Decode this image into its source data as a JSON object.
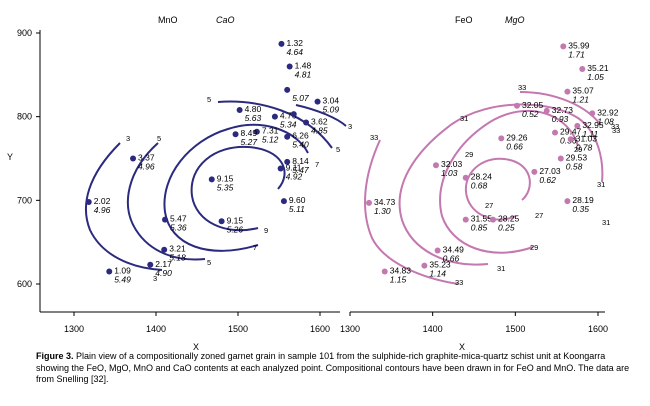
{
  "caption": {
    "label": "Figure 3.",
    "text": " Plain view of a compositionally zoned garnet grain in sample 101 from the sulphide-rich graphite-mica-quartz schist unit at Koongarra showing the FeO, MgO, MnO and CaO contents at each analyzed point. Compositional contours have been drawn in for FeO and MnO.  The data are from Snelling [32]."
  },
  "colors": {
    "left_panel": "#2b2a7e",
    "right_panel": "#c478b0",
    "text": "#000000"
  },
  "chart_data": [
    {
      "type": "scatter",
      "panel": "left",
      "series_labels": [
        "MnO",
        "CaO"
      ],
      "xlabel": "X",
      "ylabel": "Y",
      "xlim": [
        1290,
        1610
      ],
      "ylim": [
        580,
        915
      ],
      "x_ticks": [
        1300,
        1400,
        1500,
        1600
      ],
      "y_ticks": [
        600,
        700,
        800,
        900
      ],
      "contour_labels": [
        "3",
        "5",
        "5",
        "3",
        "7",
        "5",
        "7",
        "9",
        "5",
        "3"
      ],
      "points": [
        {
          "x": 1553,
          "y": 887,
          "mno": "1.32",
          "cao": "4.64"
        },
        {
          "x": 1563,
          "y": 860,
          "mno": "1.48",
          "cao": "4.81"
        },
        {
          "x": 1560,
          "y": 832,
          "mno": "",
          "cao": "5.07"
        },
        {
          "x": 1502,
          "y": 808,
          "mno": "4.80",
          "cao": "5.63"
        },
        {
          "x": 1545,
          "y": 800,
          "mno": "4.76",
          "cao": "5.34"
        },
        {
          "x": 1568,
          "y": 803,
          "mno": "",
          "cao": ""
        },
        {
          "x": 1597,
          "y": 818,
          "mno": "3.04",
          "cao": "5.09"
        },
        {
          "x": 1583,
          "y": 793,
          "mno": "3.62",
          "cao": "4.85"
        },
        {
          "x": 1523,
          "y": 782,
          "mno": "7.31",
          "cao": "5.12"
        },
        {
          "x": 1560,
          "y": 776,
          "mno": "6.26",
          "cao": "5.40"
        },
        {
          "x": 1497,
          "y": 779,
          "mno": "8.49",
          "cao": "5.27"
        },
        {
          "x": 1560,
          "y": 746,
          "mno": "8.14",
          "cao": "5.47"
        },
        {
          "x": 1552,
          "y": 738,
          "mno": "9.11",
          "cao": "4.92"
        },
        {
          "x": 1468,
          "y": 725,
          "mno": "9.15",
          "cao": "5.35"
        },
        {
          "x": 1556,
          "y": 699,
          "mno": "9.60",
          "cao": "5.11"
        },
        {
          "x": 1480,
          "y": 675,
          "mno": "9.15",
          "cao": "5.26"
        },
        {
          "x": 1411,
          "y": 677,
          "mno": "5.47",
          "cao": "5.36"
        },
        {
          "x": 1410,
          "y": 641,
          "mno": "3.21",
          "cao": "5.18"
        },
        {
          "x": 1393,
          "y": 623,
          "mno": "2.17",
          "cao": "4.90"
        },
        {
          "x": 1343,
          "y": 615,
          "mno": "1.09",
          "cao": "5.49"
        },
        {
          "x": 1318,
          "y": 698,
          "mno": "2.02",
          "cao": "4.96"
        },
        {
          "x": 1372,
          "y": 750,
          "mno": "3.37",
          "cao": "4.96"
        }
      ]
    },
    {
      "type": "scatter",
      "panel": "right",
      "series_labels": [
        "FeO",
        "MgO"
      ],
      "xlabel": "X",
      "ylabel": "",
      "xlim": [
        1290,
        1610
      ],
      "ylim": [
        580,
        915
      ],
      "x_ticks": [
        1300,
        1400,
        1500,
        1600
      ],
      "contour_labels": [
        "33",
        "33",
        "33",
        "31",
        "29",
        "29",
        "27",
        "27",
        "29",
        "31",
        "31",
        "33",
        "33",
        "31"
      ],
      "points": [
        {
          "x": 1558,
          "y": 884,
          "feo": "35.99",
          "mgo": "1.71"
        },
        {
          "x": 1581,
          "y": 857,
          "feo": "35.21",
          "mgo": "1.05"
        },
        {
          "x": 1563,
          "y": 830,
          "feo": "35.07",
          "mgo": "1.21"
        },
        {
          "x": 1538,
          "y": 807,
          "feo": "32.73",
          "mgo": "0.93"
        },
        {
          "x": 1593,
          "y": 804,
          "feo": "32.92",
          "mgo": "1.08"
        },
        {
          "x": 1502,
          "y": 813,
          "feo": "32.05",
          "mgo": "0.52"
        },
        {
          "x": 1575,
          "y": 789,
          "feo": "32.95",
          "mgo": "1.11"
        },
        {
          "x": 1548,
          "y": 781,
          "feo": "29.47",
          "mgo": "0.36"
        },
        {
          "x": 1567,
          "y": 773,
          "feo": "31.03",
          "mgo": "0.78"
        },
        {
          "x": 1483,
          "y": 774,
          "feo": "29.26",
          "mgo": "0.66"
        },
        {
          "x": 1555,
          "y": 750,
          "feo": "29.53",
          "mgo": "0.58"
        },
        {
          "x": 1523,
          "y": 734,
          "feo": "27.03",
          "mgo": "0.62"
        },
        {
          "x": 1404,
          "y": 742,
          "feo": "32.03",
          "mgo": "1.03"
        },
        {
          "x": 1440,
          "y": 727,
          "feo": "28.24",
          "mgo": "0.68"
        },
        {
          "x": 1563,
          "y": 699,
          "feo": "28.19",
          "mgo": "0.35"
        },
        {
          "x": 1440,
          "y": 677,
          "feo": "31.55",
          "mgo": "0.85"
        },
        {
          "x": 1473,
          "y": 677,
          "feo": "28.25",
          "mgo": "0.25"
        },
        {
          "x": 1323,
          "y": 697,
          "feo": "34.73",
          "mgo": "1.30"
        },
        {
          "x": 1406,
          "y": 640,
          "feo": "34.49",
          "mgo": "0.66"
        },
        {
          "x": 1390,
          "y": 622,
          "feo": "35.23",
          "mgo": "1.14"
        },
        {
          "x": 1342,
          "y": 615,
          "feo": "34.83",
          "mgo": "1.15"
        }
      ]
    }
  ]
}
